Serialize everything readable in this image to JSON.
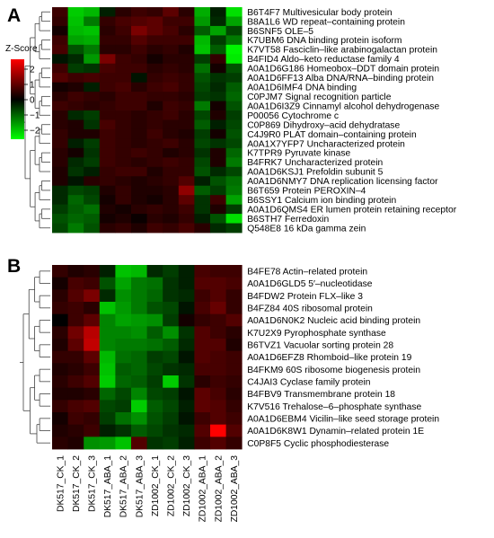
{
  "chart_data": {
    "type": "heatmap",
    "colors": {
      "low": "#00ff00",
      "mid": "#000000",
      "high": "#ff0000"
    },
    "columns": [
      "DK517_CK_1",
      "DK517_CK_2",
      "DK517_CK_3",
      "DK517_ABA_1",
      "DK517_ABA_2",
      "DK517_ABA_3",
      "ZD1002_CK_1",
      "ZD1002_CK_2",
      "ZD1002_CK_3",
      "ZD1002_ABA_1",
      "ZD1002_ABA_2",
      "ZD1002_ABA_3"
    ],
    "legend": {
      "title": "Z-Score",
      "ticks": [
        "2",
        "1",
        "0",
        "−1",
        "−2"
      ],
      "range": [
        -2.5,
        2.5
      ]
    },
    "panels": [
      {
        "label": "A",
        "rows": [
          "B6T4F7 Multivesicular body protein",
          "B8A1L6 WD repeat–containing protein",
          "B6SNF5 OLE–5",
          "K7UBM6 DNA binding protein isoform",
          "K7VT58 Fasciclin–like arabinogalactan protein",
          "B4FID4 Aldo–keto reductase family 4",
          "A0A1D6G186 Homeobox–DDT domain protein",
          "A0A1D6FF13 Alba DNA/RNA–binding protein",
          "A0A1D6IMF4 DNA binding",
          "C0PJM7 Signal recognition particle",
          "A0A1D6I3Z9 Cinnamyl alcohol dehydrogenase",
          "P00056 Cytochrome c",
          "C0P869 Dihydroxy–acid dehydratase",
          "C4J9R0 PLAT domain–containing protein",
          "A0A1X7YFP7 Uncharacterized protein",
          "K7TPR9 Pyruvate kinase",
          "B4FRK7 Uncharacterized protein",
          "A0A1D6KSJ1 Prefoldin subunit 5",
          "A0A1D6NMY7 DNA replication licensing factor",
          "B6T659 Protein PEROXIN–4",
          "B6SSY1 Calcium ion binding protein",
          "A0A1D6QMS4 ER lumen protein retaining receptor",
          "B6STH7 Ferredoxin",
          "Q548E8 16 kDa gamma zein"
        ],
        "values": [
          [
            0.6,
            -2.0,
            -1.8,
            -0.3,
            0.4,
            0.6,
            0.5,
            0.9,
            0.4,
            -1.7,
            -0.3,
            -2.2
          ],
          [
            0.5,
            -1.9,
            -1.2,
            0.5,
            0.7,
            0.8,
            0.9,
            0.6,
            0.6,
            -1.5,
            -0.4,
            -1.6
          ],
          [
            0.2,
            -1.8,
            -1.9,
            0.4,
            0.6,
            1.2,
            0.9,
            0.7,
            0.4,
            -0.9,
            -1.6,
            -0.7
          ],
          [
            0.6,
            -1.6,
            -1.7,
            0.5,
            0.5,
            0.8,
            0.6,
            0.6,
            0.6,
            -1.8,
            -0.6,
            -1.2
          ],
          [
            0.7,
            -0.8,
            -1.2,
            0.4,
            0.4,
            0.6,
            0.4,
            0.5,
            0.3,
            -1.9,
            -0.9,
            -2.4
          ],
          [
            -0.2,
            -0.4,
            -1.5,
            1.2,
            0.6,
            0.5,
            0.2,
            0.4,
            0.4,
            -0.6,
            0.5,
            -2.3
          ],
          [
            0.6,
            -0.6,
            -0.5,
            0.7,
            0.6,
            0.6,
            0.4,
            0.5,
            0.4,
            -1.1,
            0.2,
            -0.8
          ],
          [
            0.8,
            0.6,
            0.7,
            0.6,
            0.6,
            -0.2,
            0.5,
            0.6,
            0.5,
            -0.8,
            -0.5,
            -0.6
          ],
          [
            0.2,
            0.3,
            -0.3,
            0.6,
            0.7,
            0.4,
            0.6,
            0.7,
            0.5,
            -0.7,
            -0.4,
            -0.9
          ],
          [
            0.4,
            0.6,
            0.5,
            0.4,
            0.6,
            0.6,
            0.5,
            0.5,
            0.4,
            -0.6,
            -0.5,
            -1.0
          ],
          [
            0.6,
            0.5,
            0.4,
            0.5,
            0.6,
            0.6,
            0.3,
            0.6,
            0.5,
            -1.2,
            0.2,
            -0.8
          ],
          [
            0.4,
            -0.4,
            -0.6,
            0.5,
            0.5,
            0.4,
            0.5,
            0.6,
            0.4,
            -0.7,
            0.3,
            -0.6
          ],
          [
            0.4,
            0.3,
            -0.5,
            0.7,
            0.5,
            0.4,
            0.5,
            0.4,
            0.4,
            -0.9,
            -0.3,
            -0.7
          ],
          [
            0.5,
            0.3,
            0.3,
            0.6,
            0.5,
            0.4,
            0.6,
            0.4,
            0.3,
            -0.6,
            0.2,
            -0.8
          ],
          [
            0.5,
            -0.3,
            -0.6,
            0.6,
            0.5,
            0.4,
            0.5,
            0.6,
            0.4,
            -0.7,
            -0.5,
            -0.7
          ],
          [
            0.4,
            0.2,
            -0.5,
            0.6,
            0.5,
            0.6,
            0.5,
            0.3,
            0.4,
            -0.5,
            0.3,
            -1.0
          ],
          [
            0.4,
            -0.4,
            -0.6,
            0.6,
            0.5,
            0.4,
            0.5,
            0.6,
            0.5,
            -0.7,
            0.3,
            -1.2
          ],
          [
            0.3,
            -0.5,
            -0.3,
            0.5,
            0.6,
            0.6,
            0.3,
            0.5,
            0.5,
            -0.8,
            -0.4,
            -0.7
          ],
          [
            0.3,
            -0.2,
            0.4,
            0.5,
            0.4,
            0.3,
            0.4,
            0.5,
            0.8,
            -0.3,
            -0.8,
            -1.1
          ],
          [
            -0.4,
            -0.7,
            -0.6,
            0.3,
            0.5,
            0.3,
            0.3,
            0.4,
            1.4,
            -0.9,
            -0.6,
            -1.2
          ],
          [
            -0.4,
            -1.0,
            -0.7,
            0.2,
            0.5,
            0.3,
            0.2,
            0.4,
            0.9,
            -0.5,
            0.6,
            -1.6
          ],
          [
            -0.6,
            -0.9,
            -1.1,
            0.3,
            0.2,
            0.4,
            0.5,
            0.4,
            0.6,
            -0.5,
            0.3,
            -0.6
          ],
          [
            -0.8,
            -1.0,
            -0.9,
            0.2,
            0.3,
            0.1,
            0.4,
            0.3,
            0.5,
            -0.3,
            -0.8,
            -2.2
          ],
          [
            -0.7,
            -1.2,
            -0.8,
            0.4,
            0.5,
            0.3,
            0.6,
            0.5,
            0.7,
            0.4,
            -0.4,
            -0.6
          ]
        ]
      },
      {
        "label": "B",
        "rows": [
          "B4FE78 Actin–related protein",
          "A0A1D6GLD5 5′–nucleotidase",
          "B4FDW2 Protein FLX–like 3",
          "B4FZ84 40S ribosomal protein",
          "A0A1D6N0K2 Nucleic acid binding protein",
          "K7U2X9 Pyrophosphate synthase",
          "B6TVZ1 Vacuolar sorting protein 28",
          "A0A1D6EFZ8 Rhomboid–like protein 19",
          "B4FKM9 60S ribosome biogenesis protein",
          "C4JAI3 Cyclase family protein",
          "B4FBV9 Transmembrane protein 18",
          "K7V516 Trehalose–6–phosphate synthase",
          "A0A1D6EBM4 Vicilin–like seed storage protein",
          "A0A1D6K8W1 Dynamin–related protein 1E",
          "C0P8F5 Cyclic phosphodiesterase"
        ],
        "values": [
          [
            0.5,
            0.3,
            0.4,
            -0.3,
            -1.9,
            -1.8,
            -0.4,
            -0.6,
            -0.3,
            0.7,
            0.6,
            0.6
          ],
          [
            0.2,
            0.7,
            0.6,
            -0.8,
            -1.6,
            -1.2,
            -1.1,
            -0.5,
            -0.3,
            0.8,
            0.8,
            0.7
          ],
          [
            0.4,
            0.8,
            1.2,
            -0.4,
            -1.4,
            -1.2,
            -1.0,
            -0.5,
            -0.4,
            0.6,
            0.8,
            0.5
          ],
          [
            0.5,
            0.6,
            0.4,
            -1.9,
            -1.5,
            -1.2,
            -0.8,
            -0.7,
            -0.2,
            0.7,
            1.0,
            0.5
          ],
          [
            0.0,
            0.6,
            0.9,
            -1.3,
            -1.6,
            -1.5,
            -1.4,
            -0.6,
            0.2,
            0.5,
            0.6,
            0.8
          ],
          [
            0.4,
            1.1,
            1.8,
            -1.3,
            -1.3,
            -1.4,
            -0.9,
            -1.4,
            -0.5,
            0.8,
            0.6,
            0.4
          ],
          [
            0.3,
            0.9,
            1.9,
            -1.3,
            -1.2,
            -1.2,
            -1.1,
            -0.9,
            -0.4,
            0.8,
            0.8,
            0.3
          ],
          [
            0.5,
            0.5,
            0.9,
            -1.8,
            -1.1,
            -1.0,
            -0.6,
            -0.7,
            -0.2,
            0.8,
            0.7,
            0.6
          ],
          [
            0.3,
            0.4,
            0.6,
            -1.9,
            -0.9,
            -1.0,
            -0.7,
            -0.5,
            -0.4,
            0.7,
            0.7,
            0.6
          ],
          [
            0.4,
            0.6,
            0.8,
            -2.0,
            -1.0,
            -0.9,
            -0.6,
            -2.0,
            -0.5,
            0.4,
            0.6,
            0.5
          ],
          [
            0.3,
            0.3,
            0.4,
            -1.0,
            -0.7,
            -1.3,
            -0.7,
            -0.6,
            -0.2,
            0.9,
            0.7,
            0.4
          ],
          [
            0.5,
            0.7,
            0.8,
            -0.7,
            -0.6,
            -2.0,
            -0.9,
            -0.7,
            -0.3,
            0.9,
            0.8,
            0.5
          ],
          [
            0.2,
            0.6,
            0.5,
            -0.6,
            -1.1,
            -1.4,
            -0.8,
            -0.6,
            -0.2,
            0.6,
            0.8,
            0.6
          ],
          [
            0.3,
            0.4,
            0.6,
            -0.3,
            -0.5,
            -0.9,
            -0.7,
            -0.5,
            -0.4,
            0.8,
            2.5,
            0.8
          ],
          [
            0.4,
            0.3,
            -1.4,
            -1.5,
            -1.9,
            0.8,
            -0.5,
            -0.6,
            -0.3,
            0.6,
            0.8,
            0.5
          ]
        ]
      }
    ]
  }
}
